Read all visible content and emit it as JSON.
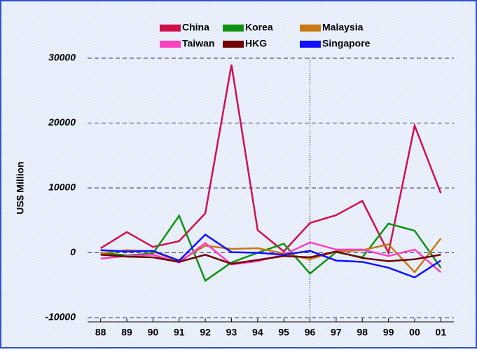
{
  "chart_data": {
    "type": "line",
    "y_label": "US$ Million",
    "categories": [
      "88",
      "89",
      "90",
      "91",
      "92",
      "93",
      "94",
      "95",
      "96",
      "97",
      "98",
      "99",
      "00",
      "01"
    ],
    "series": [
      {
        "name": "China",
        "color": "#d0104c",
        "values": [
          700,
          3200,
          900,
          1800,
          6100,
          29000,
          3500,
          200,
          4600,
          5800,
          8000,
          0,
          19600,
          9200
        ]
      },
      {
        "name": "Korea",
        "color": "#109010",
        "values": [
          0,
          -400,
          -100,
          5700,
          -4300,
          -1500,
          0,
          1400,
          -3200,
          100,
          -700,
          4500,
          3400,
          -2300
        ]
      },
      {
        "name": "Malaysia",
        "color": "#c87810",
        "values": [
          -100,
          400,
          200,
          -1300,
          1100,
          600,
          700,
          -100,
          -1000,
          200,
          400,
          1300,
          -3000,
          2200
        ]
      },
      {
        "name": "Taiwan",
        "color": "#ff40c0",
        "values": [
          -900,
          -500,
          -300,
          -1500,
          1500,
          -1800,
          -1300,
          -300,
          1600,
          500,
          500,
          -500,
          500,
          -3000
        ]
      },
      {
        "name": "HKG",
        "color": "#700000",
        "values": [
          -300,
          -600,
          -700,
          -1400,
          -300,
          -1700,
          -1100,
          -500,
          -700,
          200,
          -800,
          -1300,
          -1000,
          -300
        ]
      },
      {
        "name": "Singapore",
        "color": "#1010ff",
        "values": [
          400,
          200,
          300,
          -1200,
          2800,
          100,
          0,
          -300,
          300,
          -1200,
          -1400,
          -2300,
          -3800,
          -1200
        ]
      }
    ],
    "ylim": [
      -10000,
      30000
    ],
    "yticks": [
      -10000,
      0,
      10000,
      20000,
      30000
    ],
    "grid": true
  }
}
